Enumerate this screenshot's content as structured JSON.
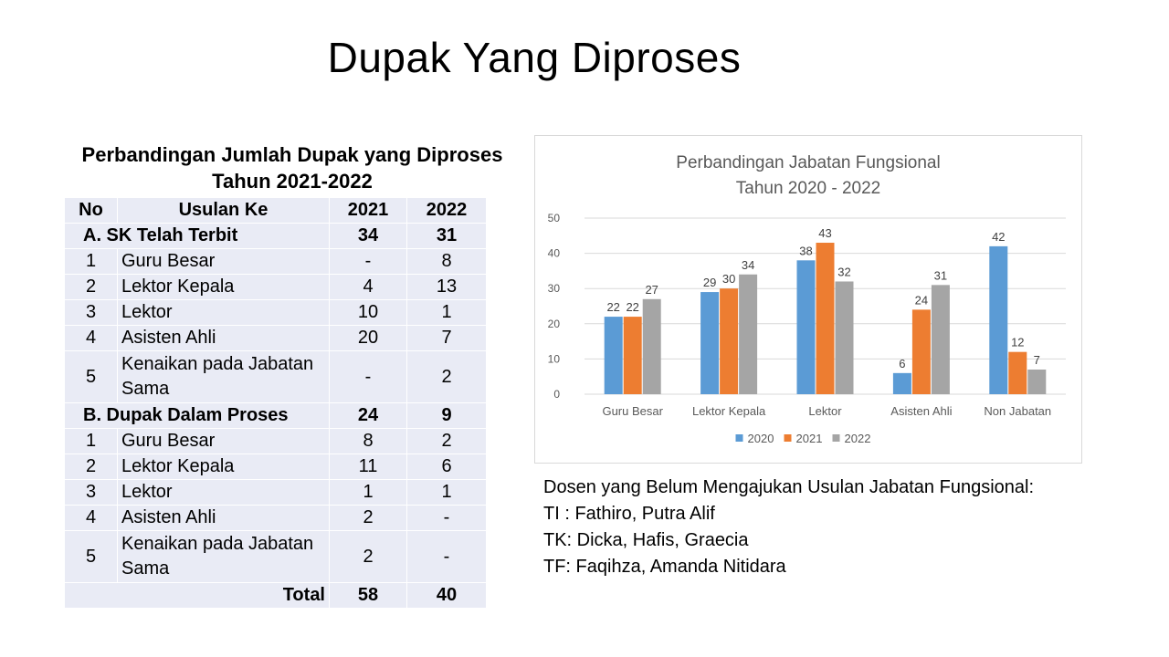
{
  "slide_title": "Dupak Yang Diproses",
  "table": {
    "title_line1": "Perbandingan Jumlah Dupak yang Diproses",
    "title_line2": "Tahun 2021-2022",
    "headers": {
      "no": "No",
      "usulan": "Usulan Ke",
      "y2021": "2021",
      "y2022": "2022"
    },
    "section_a": {
      "label": "A. SK Telah Terbit",
      "v2021": "34",
      "v2022": "31"
    },
    "a_rows": [
      {
        "no": "1",
        "name": "Guru Besar",
        "v2021": "-",
        "v2022": "8"
      },
      {
        "no": "2",
        "name": "Lektor Kepala",
        "v2021": "4",
        "v2022": "13"
      },
      {
        "no": "3",
        "name": "Lektor",
        "v2021": "10",
        "v2022": "1"
      },
      {
        "no": "4",
        "name": "Asisten Ahli",
        "v2021": "20",
        "v2022": "7"
      },
      {
        "no": "5",
        "name_line1": "Kenaikan pada Jabatan",
        "name_line2": "Sama",
        "v2021": "-",
        "v2022": "2"
      }
    ],
    "section_b": {
      "label": "B. Dupak Dalam Proses",
      "v2021": "24",
      "v2022": "9"
    },
    "b_rows": [
      {
        "no": "1",
        "name": "Guru Besar",
        "v2021": "8",
        "v2022": "2"
      },
      {
        "no": "2",
        "name": "Lektor Kepala",
        "v2021": "11",
        "v2022": "6"
      },
      {
        "no": "3",
        "name": "Lektor",
        "v2021": "1",
        "v2022": "1"
      },
      {
        "no": "4",
        "name": "Asisten Ahli",
        "v2021": "2",
        "v2022": "-"
      },
      {
        "no": "5",
        "name_line1": "Kenaikan pada Jabatan",
        "name_line2": "Sama",
        "v2021": "2",
        "v2022": "-"
      }
    ],
    "total": {
      "label": "Total",
      "v2021": "58",
      "v2022": "40"
    }
  },
  "chart_data": {
    "type": "bar",
    "title": "Perbandingan Jabatan Fungsional",
    "subtitle": "Tahun 2020 - 2022",
    "categories": [
      "Guru Besar",
      "Lektor Kepala",
      "Lektor",
      "Asisten Ahli",
      "Non Jabatan"
    ],
    "series": [
      {
        "name": "2020",
        "color": "#5b9bd5",
        "values": [
          22,
          29,
          38,
          6,
          42
        ]
      },
      {
        "name": "2021",
        "color": "#ed7d31",
        "values": [
          22,
          30,
          43,
          24,
          12
        ]
      },
      {
        "name": "2022",
        "color": "#a5a5a5",
        "values": [
          27,
          34,
          32,
          31,
          7
        ]
      }
    ],
    "ylim": [
      0,
      50
    ],
    "yticks": [
      0,
      10,
      20,
      30,
      40,
      50
    ],
    "grid": true,
    "legend": "bottom",
    "data_labels": true
  },
  "notes": [
    "Dosen yang Belum Mengajukan Usulan Jabatan Fungsional:",
    "TI : Fathiro, Putra Alif",
    "TK: Dicka, Hafis, Graecia",
    "TF: Faqihza, Amanda Nitidara"
  ]
}
